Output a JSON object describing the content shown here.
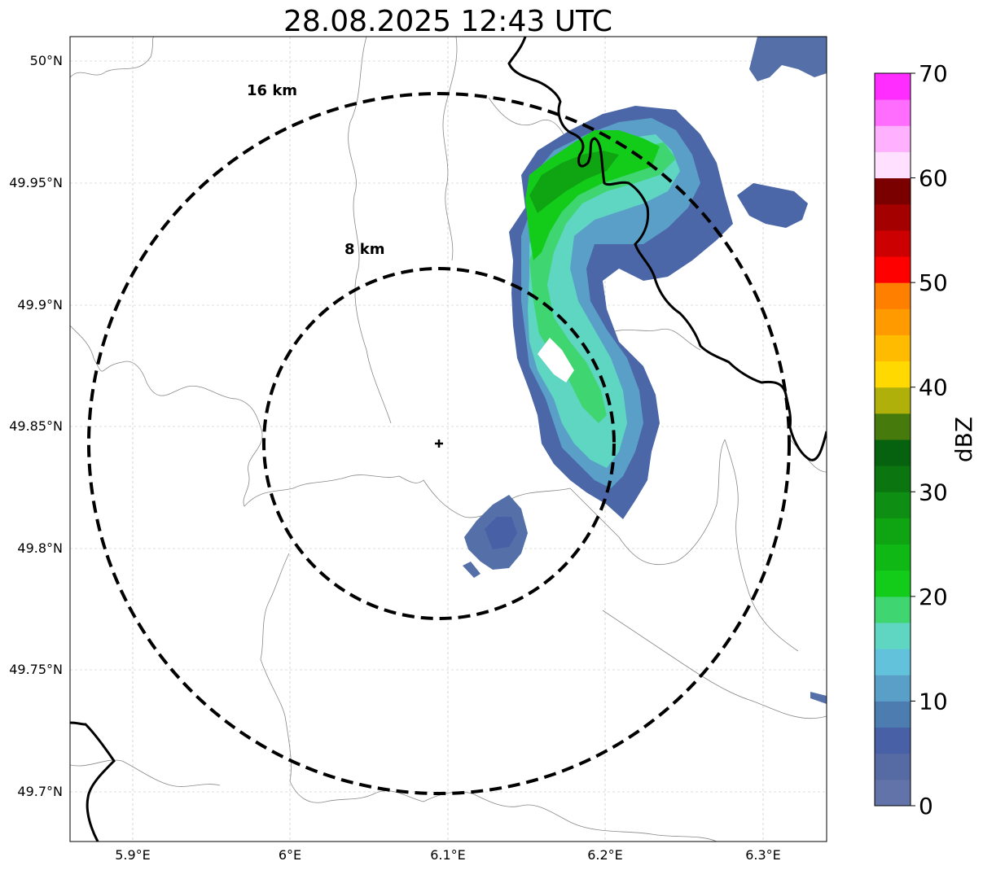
{
  "title": "28.08.2025 12:43 UTC",
  "x_ticks": [
    "5.9°E",
    "6°E",
    "6.1°E",
    "6.2°E",
    "6.3°E"
  ],
  "y_ticks": [
    "50°N",
    "49.95°N",
    "49.9°N",
    "49.85°N",
    "49.8°N",
    "49.75°N",
    "49.7°N"
  ],
  "range_rings": [
    {
      "label": "16 km",
      "radius_km": 16
    },
    {
      "label": "8 km",
      "radius_km": 8
    }
  ],
  "radar_site": {
    "lon": 6.095,
    "lat": 49.843
  },
  "colorbar": {
    "label": "dBZ",
    "ticks": [
      "0",
      "10",
      "20",
      "30",
      "40",
      "50",
      "60",
      "70"
    ],
    "colors": [
      "#6173a8",
      "#566aa3",
      "#4860a5",
      "#4d7db0",
      "#5a9fc8",
      "#63c2db",
      "#5fd6c2",
      "#3fd672",
      "#13cc1a",
      "#10b815",
      "#0fa512",
      "#0e8e12",
      "#0b7610",
      "#07620f",
      "#467a0c",
      "#afb00a",
      "#ffd900",
      "#ffbb00",
      "#ff9b00",
      "#ff7f00",
      "#ff0000",
      "#cc0000",
      "#a50000",
      "#7a0000",
      "#ffe1ff",
      "#ffb1ff",
      "#ff6dff",
      "#ff2dff"
    ]
  },
  "legend_words": {
    "dbz": "dBZ"
  }
}
